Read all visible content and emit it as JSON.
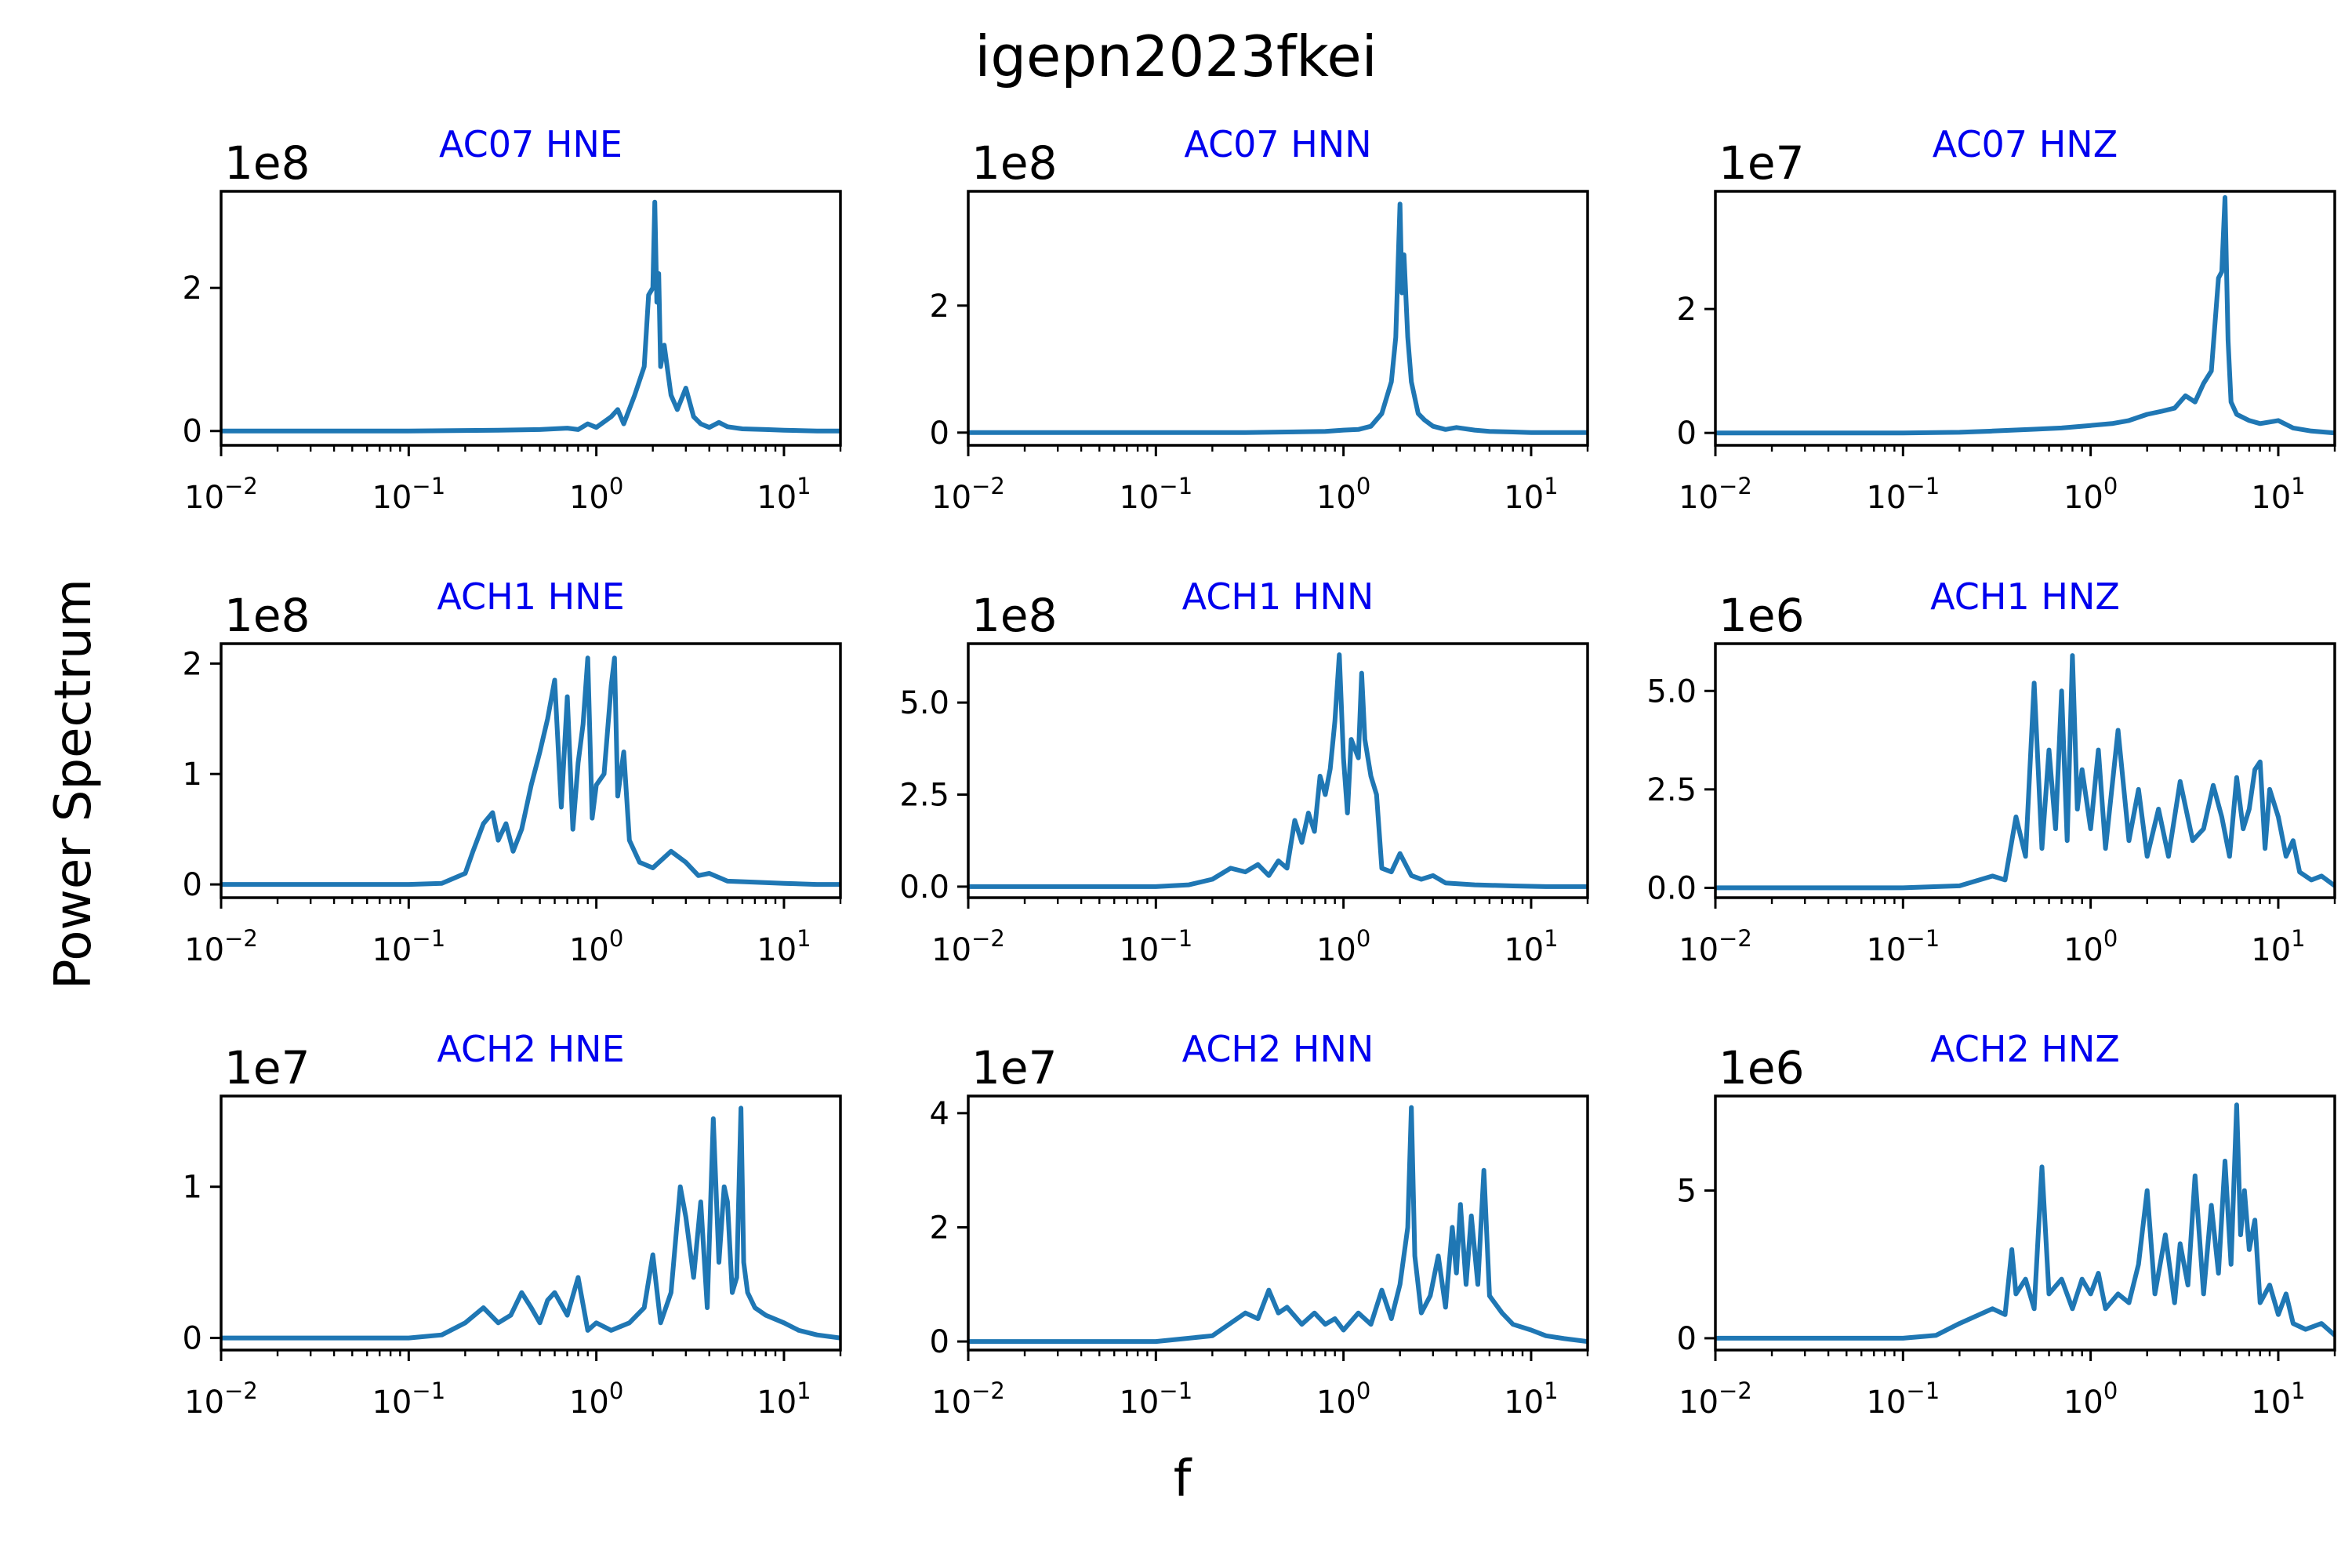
{
  "figure": {
    "title": "igepn2023fkei",
    "xlabel": "f",
    "ylabel": "Power Spectrum",
    "line_color": "#1f77b4",
    "title_color": "#0000ee"
  },
  "chart_data": [
    {
      "type": "line",
      "title": "AC07 HNE",
      "multiplier": "1e8",
      "xscale": "log",
      "xlim": [
        0.01,
        20
      ],
      "ylim": [
        -0.2,
        3.35
      ],
      "xticks": [
        {
          "base": "10",
          "exp": "−2",
          "v": 0.01
        },
        {
          "base": "10",
          "exp": "−1",
          "v": 0.1
        },
        {
          "base": "10",
          "exp": "0",
          "v": 1
        },
        {
          "base": "10",
          "exp": "1",
          "v": 10
        }
      ],
      "yticks": [
        {
          "v": 0,
          "label": "0"
        },
        {
          "v": 2,
          "label": "2"
        }
      ],
      "series": [
        {
          "x": [
            0.01,
            0.05,
            0.1,
            0.3,
            0.5,
            0.7,
            0.8,
            0.9,
            1.0,
            1.2,
            1.3,
            1.4,
            1.6,
            1.8,
            1.9,
            2.0,
            2.05,
            2.1,
            2.15,
            2.2,
            2.3,
            2.5,
            2.7,
            3.0,
            3.3,
            3.6,
            4.0,
            4.5,
            5.0,
            6.0,
            8.0,
            10,
            15,
            20
          ],
          "y": [
            0,
            0,
            0,
            0.01,
            0.02,
            0.04,
            0.02,
            0.1,
            0.05,
            0.2,
            0.3,
            0.1,
            0.5,
            0.9,
            1.9,
            2.0,
            3.2,
            1.8,
            2.2,
            0.9,
            1.2,
            0.5,
            0.3,
            0.6,
            0.2,
            0.1,
            0.05,
            0.12,
            0.06,
            0.03,
            0.02,
            0.01,
            0,
            0
          ]
        }
      ]
    },
    {
      "type": "line",
      "title": "AC07 HNN",
      "multiplier": "1e8",
      "xscale": "log",
      "xlim": [
        0.01,
        20
      ],
      "ylim": [
        -0.2,
        3.8
      ],
      "xticks": [
        {
          "base": "10",
          "exp": "−2",
          "v": 0.01
        },
        {
          "base": "10",
          "exp": "−1",
          "v": 0.1
        },
        {
          "base": "10",
          "exp": "0",
          "v": 1
        },
        {
          "base": "10",
          "exp": "1",
          "v": 10
        }
      ],
      "yticks": [
        {
          "v": 0,
          "label": "0"
        },
        {
          "v": 2,
          "label": "2"
        }
      ],
      "series": [
        {
          "x": [
            0.01,
            0.05,
            0.1,
            0.3,
            0.5,
            0.8,
            1.0,
            1.2,
            1.4,
            1.6,
            1.8,
            1.9,
            2.0,
            2.05,
            2.1,
            2.2,
            2.3,
            2.5,
            2.7,
            3.0,
            3.5,
            4.0,
            5.0,
            6.0,
            8.0,
            10,
            15,
            20
          ],
          "y": [
            0,
            0,
            0,
            0,
            0.01,
            0.02,
            0.04,
            0.05,
            0.1,
            0.3,
            0.8,
            1.5,
            3.6,
            2.2,
            2.8,
            1.5,
            0.8,
            0.3,
            0.2,
            0.1,
            0.05,
            0.08,
            0.04,
            0.02,
            0.01,
            0,
            0,
            0
          ]
        }
      ]
    },
    {
      "type": "line",
      "title": "AC07 HNZ",
      "multiplier": "1e7",
      "xscale": "log",
      "xlim": [
        0.01,
        20
      ],
      "ylim": [
        -0.2,
        3.9
      ],
      "xticks": [
        {
          "base": "10",
          "exp": "−2",
          "v": 0.01
        },
        {
          "base": "10",
          "exp": "−1",
          "v": 0.1
        },
        {
          "base": "10",
          "exp": "0",
          "v": 1
        },
        {
          "base": "10",
          "exp": "1",
          "v": 10
        }
      ],
      "yticks": [
        {
          "v": 0,
          "label": "0"
        },
        {
          "v": 2,
          "label": "2"
        }
      ],
      "series": [
        {
          "x": [
            0.01,
            0.1,
            0.2,
            0.3,
            0.5,
            0.7,
            1.0,
            1.3,
            1.6,
            2.0,
            2.4,
            2.8,
            3.2,
            3.6,
            4.0,
            4.4,
            4.8,
            5.0,
            5.2,
            5.4,
            5.6,
            6.0,
            7.0,
            8.0,
            10,
            12,
            15,
            20
          ],
          "y": [
            0,
            0,
            0.01,
            0.03,
            0.06,
            0.08,
            0.12,
            0.15,
            0.2,
            0.3,
            0.35,
            0.4,
            0.6,
            0.5,
            0.8,
            1.0,
            2.5,
            2.6,
            3.8,
            1.5,
            0.5,
            0.3,
            0.2,
            0.15,
            0.2,
            0.08,
            0.03,
            0
          ]
        }
      ]
    },
    {
      "type": "line",
      "title": "ACH1 HNE",
      "multiplier": "1e8",
      "xscale": "log",
      "xlim": [
        0.01,
        20
      ],
      "ylim": [
        -0.12,
        2.18
      ],
      "xticks": [
        {
          "base": "10",
          "exp": "−2",
          "v": 0.01
        },
        {
          "base": "10",
          "exp": "−1",
          "v": 0.1
        },
        {
          "base": "10",
          "exp": "0",
          "v": 1
        },
        {
          "base": "10",
          "exp": "1",
          "v": 10
        }
      ],
      "yticks": [
        {
          "v": 0,
          "label": "0"
        },
        {
          "v": 1,
          "label": "1"
        },
        {
          "v": 2,
          "label": "2"
        }
      ],
      "series": [
        {
          "x": [
            0.01,
            0.05,
            0.1,
            0.15,
            0.2,
            0.22,
            0.25,
            0.28,
            0.3,
            0.33,
            0.36,
            0.4,
            0.45,
            0.5,
            0.55,
            0.6,
            0.65,
            0.7,
            0.75,
            0.8,
            0.85,
            0.9,
            0.95,
            1.0,
            1.1,
            1.2,
            1.25,
            1.3,
            1.4,
            1.5,
            1.7,
            2.0,
            2.5,
            3.0,
            3.5,
            4.0,
            5.0,
            7.0,
            10,
            15,
            20
          ],
          "y": [
            0,
            0,
            0,
            0.01,
            0.1,
            0.3,
            0.55,
            0.65,
            0.4,
            0.55,
            0.3,
            0.5,
            0.9,
            1.2,
            1.5,
            1.85,
            0.7,
            1.7,
            0.5,
            1.1,
            1.45,
            2.05,
            0.6,
            0.9,
            1.0,
            1.8,
            2.05,
            0.8,
            1.2,
            0.4,
            0.2,
            0.15,
            0.3,
            0.2,
            0.08,
            0.1,
            0.03,
            0.02,
            0.01,
            0,
            0
          ]
        }
      ]
    },
    {
      "type": "line",
      "title": "ACH1 HNN",
      "multiplier": "1e8",
      "xscale": "log",
      "xlim": [
        0.01,
        20
      ],
      "ylim": [
        -0.3,
        6.6
      ],
      "xticks": [
        {
          "base": "10",
          "exp": "−2",
          "v": 0.01
        },
        {
          "base": "10",
          "exp": "−1",
          "v": 0.1
        },
        {
          "base": "10",
          "exp": "0",
          "v": 1
        },
        {
          "base": "10",
          "exp": "1",
          "v": 10
        }
      ],
      "yticks": [
        {
          "v": 0,
          "label": "0.0"
        },
        {
          "v": 2.5,
          "label": "2.5"
        },
        {
          "v": 5,
          "label": "5.0"
        }
      ],
      "series": [
        {
          "x": [
            0.01,
            0.05,
            0.1,
            0.15,
            0.2,
            0.25,
            0.3,
            0.35,
            0.4,
            0.45,
            0.5,
            0.55,
            0.6,
            0.65,
            0.7,
            0.75,
            0.8,
            0.85,
            0.9,
            0.95,
            1.0,
            1.05,
            1.1,
            1.2,
            1.25,
            1.3,
            1.4,
            1.5,
            1.6,
            1.8,
            2.0,
            2.3,
            2.6,
            3.0,
            3.5,
            5.0,
            8.0,
            12,
            20
          ],
          "y": [
            0,
            0,
            0,
            0.05,
            0.2,
            0.5,
            0.4,
            0.6,
            0.3,
            0.7,
            0.5,
            1.8,
            1.2,
            2.0,
            1.5,
            3.0,
            2.5,
            3.2,
            4.5,
            6.3,
            3.5,
            2.0,
            4.0,
            3.5,
            5.8,
            4.0,
            3.0,
            2.5,
            0.5,
            0.4,
            0.9,
            0.3,
            0.2,
            0.3,
            0.1,
            0.05,
            0.02,
            0,
            0
          ]
        }
      ]
    },
    {
      "type": "line",
      "title": "ACH1 HNZ",
      "multiplier": "1e6",
      "xscale": "log",
      "xlim": [
        0.01,
        20
      ],
      "ylim": [
        -0.25,
        6.2
      ],
      "xticks": [
        {
          "base": "10",
          "exp": "−2",
          "v": 0.01
        },
        {
          "base": "10",
          "exp": "−1",
          "v": 0.1
        },
        {
          "base": "10",
          "exp": "0",
          "v": 1
        },
        {
          "base": "10",
          "exp": "1",
          "v": 10
        }
      ],
      "yticks": [
        {
          "v": 0,
          "label": "0.0"
        },
        {
          "v": 2.5,
          "label": "2.5"
        },
        {
          "v": 5,
          "label": "5.0"
        }
      ],
      "series": [
        {
          "x": [
            0.01,
            0.05,
            0.1,
            0.2,
            0.3,
            0.35,
            0.4,
            0.45,
            0.5,
            0.55,
            0.6,
            0.65,
            0.7,
            0.75,
            0.8,
            0.85,
            0.9,
            1.0,
            1.1,
            1.2,
            1.4,
            1.6,
            1.8,
            2.0,
            2.3,
            2.6,
            3.0,
            3.5,
            4.0,
            4.5,
            5.0,
            5.5,
            6.0,
            6.5,
            7.0,
            7.5,
            8.0,
            8.5,
            9.0,
            10,
            11,
            12,
            13,
            15,
            17,
            20
          ],
          "y": [
            0,
            0,
            0,
            0.05,
            0.3,
            0.2,
            1.8,
            0.8,
            5.2,
            1.0,
            3.5,
            1.5,
            5.0,
            1.2,
            5.9,
            2.0,
            3.0,
            1.5,
            3.5,
            1.0,
            4.0,
            1.2,
            2.5,
            0.8,
            2.0,
            0.8,
            2.7,
            1.2,
            1.5,
            2.6,
            1.8,
            0.8,
            2.8,
            1.5,
            2.0,
            3.0,
            3.2,
            1.0,
            2.5,
            1.8,
            0.8,
            1.2,
            0.4,
            0.2,
            0.3,
            0.05
          ]
        }
      ]
    },
    {
      "type": "line",
      "title": "ACH2 HNE",
      "multiplier": "1e7",
      "xscale": "log",
      "xlim": [
        0.01,
        20
      ],
      "ylim": [
        -0.08,
        1.6
      ],
      "xticks": [
        {
          "base": "10",
          "exp": "−2",
          "v": 0.01
        },
        {
          "base": "10",
          "exp": "−1",
          "v": 0.1
        },
        {
          "base": "10",
          "exp": "0",
          "v": 1
        },
        {
          "base": "10",
          "exp": "1",
          "v": 10
        }
      ],
      "yticks": [
        {
          "v": 0,
          "label": "0"
        },
        {
          "v": 1,
          "label": "1"
        }
      ],
      "series": [
        {
          "x": [
            0.01,
            0.05,
            0.1,
            0.15,
            0.2,
            0.25,
            0.3,
            0.35,
            0.4,
            0.45,
            0.5,
            0.55,
            0.6,
            0.7,
            0.8,
            0.9,
            1.0,
            1.2,
            1.5,
            1.8,
            2.0,
            2.2,
            2.5,
            2.8,
            3.0,
            3.3,
            3.6,
            3.9,
            4.2,
            4.5,
            4.8,
            5.0,
            5.3,
            5.6,
            5.9,
            6.1,
            6.4,
            7.0,
            8.0,
            10,
            12,
            15,
            20
          ],
          "y": [
            0,
            0,
            0,
            0.02,
            0.1,
            0.2,
            0.1,
            0.15,
            0.3,
            0.2,
            0.1,
            0.25,
            0.3,
            0.15,
            0.4,
            0.05,
            0.1,
            0.05,
            0.1,
            0.2,
            0.55,
            0.1,
            0.3,
            1.0,
            0.8,
            0.4,
            0.9,
            0.2,
            1.45,
            0.5,
            1.0,
            0.9,
            0.3,
            0.4,
            1.52,
            0.5,
            0.3,
            0.2,
            0.15,
            0.1,
            0.05,
            0.02,
            0
          ]
        }
      ]
    },
    {
      "type": "line",
      "title": "ACH2 HNN",
      "multiplier": "1e7",
      "xscale": "log",
      "xlim": [
        0.01,
        20
      ],
      "ylim": [
        -0.15,
        4.3
      ],
      "xticks": [
        {
          "base": "10",
          "exp": "−2",
          "v": 0.01
        },
        {
          "base": "10",
          "exp": "−1",
          "v": 0.1
        },
        {
          "base": "10",
          "exp": "0",
          "v": 1
        },
        {
          "base": "10",
          "exp": "1",
          "v": 10
        }
      ],
      "yticks": [
        {
          "v": 0,
          "label": "0"
        },
        {
          "v": 2,
          "label": "2"
        },
        {
          "v": 4,
          "label": "4"
        }
      ],
      "series": [
        {
          "x": [
            0.01,
            0.05,
            0.1,
            0.2,
            0.3,
            0.35,
            0.4,
            0.45,
            0.5,
            0.6,
            0.7,
            0.8,
            0.9,
            1.0,
            1.2,
            1.4,
            1.6,
            1.8,
            2.0,
            2.2,
            2.3,
            2.4,
            2.6,
            2.9,
            3.2,
            3.5,
            3.8,
            4.0,
            4.2,
            4.5,
            4.8,
            5.2,
            5.6,
            6.0,
            7.0,
            8.0,
            10,
            12,
            15,
            20
          ],
          "y": [
            0,
            0,
            0,
            0.1,
            0.5,
            0.4,
            0.9,
            0.5,
            0.6,
            0.3,
            0.5,
            0.3,
            0.4,
            0.2,
            0.5,
            0.3,
            0.9,
            0.4,
            1.0,
            2.0,
            4.1,
            1.5,
            0.5,
            0.8,
            1.5,
            0.6,
            2.0,
            1.2,
            2.4,
            1.0,
            2.2,
            1.0,
            3.0,
            0.8,
            0.5,
            0.3,
            0.2,
            0.1,
            0.05,
            0
          ]
        }
      ]
    },
    {
      "type": "line",
      "title": "ACH2 HNZ",
      "multiplier": "1e6",
      "xscale": "log",
      "xlim": [
        0.01,
        20
      ],
      "ylim": [
        -0.4,
        8.2
      ],
      "xticks": [
        {
          "base": "10",
          "exp": "−2",
          "v": 0.01
        },
        {
          "base": "10",
          "exp": "−1",
          "v": 0.1
        },
        {
          "base": "10",
          "exp": "0",
          "v": 1
        },
        {
          "base": "10",
          "exp": "1",
          "v": 10
        }
      ],
      "yticks": [
        {
          "v": 0,
          "label": "0"
        },
        {
          "v": 5,
          "label": "5"
        }
      ],
      "series": [
        {
          "x": [
            0.01,
            0.05,
            0.1,
            0.15,
            0.2,
            0.3,
            0.35,
            0.38,
            0.4,
            0.45,
            0.5,
            0.55,
            0.6,
            0.7,
            0.8,
            0.9,
            1.0,
            1.1,
            1.2,
            1.4,
            1.6,
            1.8,
            2.0,
            2.2,
            2.5,
            2.8,
            3.0,
            3.3,
            3.6,
            4.0,
            4.4,
            4.8,
            5.2,
            5.6,
            6.0,
            6.3,
            6.6,
            7.0,
            7.5,
            8.0,
            9.0,
            10,
            11,
            12,
            14,
            17,
            20
          ],
          "y": [
            0,
            0,
            0,
            0.1,
            0.5,
            1.0,
            0.8,
            3.0,
            1.5,
            2.0,
            1.0,
            5.8,
            1.5,
            2.0,
            1.0,
            2.0,
            1.5,
            2.2,
            1.0,
            1.5,
            1.2,
            2.5,
            5.0,
            1.5,
            3.5,
            1.2,
            3.2,
            1.8,
            5.5,
            1.5,
            4.5,
            2.2,
            6.0,
            2.5,
            7.9,
            3.5,
            5.0,
            3.0,
            4.0,
            1.2,
            1.8,
            0.8,
            1.5,
            0.5,
            0.3,
            0.5,
            0.1
          ]
        }
      ]
    }
  ]
}
